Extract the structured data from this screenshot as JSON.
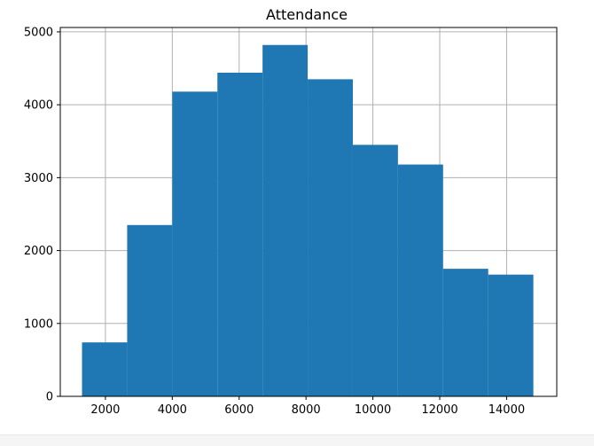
{
  "chart_data": {
    "type": "bar",
    "title": "Attendance",
    "xlabel": "",
    "ylabel": "",
    "xlim": [
      650,
      15500
    ],
    "ylim": [
      0,
      5060
    ],
    "x_ticks": [
      2000,
      4000,
      6000,
      8000,
      10000,
      12000,
      14000
    ],
    "y_ticks": [
      0,
      1000,
      2000,
      3000,
      4000,
      5000
    ],
    "grid": true,
    "bar_color": "#1f77b4",
    "bins": [
      {
        "x0": 1300,
        "x1": 2650,
        "value": 740
      },
      {
        "x0": 2650,
        "x1": 4000,
        "value": 2350
      },
      {
        "x0": 4000,
        "x1": 5350,
        "value": 4180
      },
      {
        "x0": 5350,
        "x1": 6700,
        "value": 4440
      },
      {
        "x0": 6700,
        "x1": 8050,
        "value": 4820
      },
      {
        "x0": 8050,
        "x1": 9400,
        "value": 4350
      },
      {
        "x0": 9400,
        "x1": 10750,
        "value": 3450
      },
      {
        "x0": 10750,
        "x1": 12100,
        "value": 3180
      },
      {
        "x0": 12100,
        "x1": 13450,
        "value": 1750
      },
      {
        "x0": 13450,
        "x1": 14800,
        "value": 1670
      }
    ]
  }
}
